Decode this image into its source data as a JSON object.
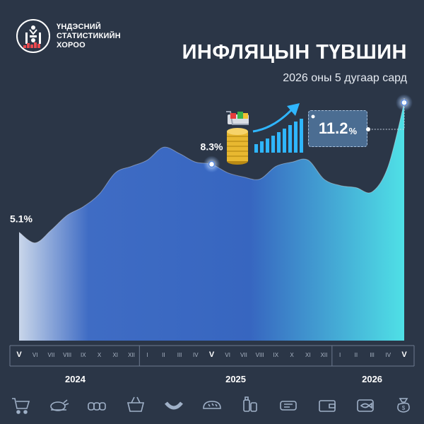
{
  "header": {
    "org_name": "ҮНДЭСНИЙ СТАТИСТИКИЙН ХОРОО",
    "title": "ИНФЛЯЦЫН ТҮВШИН",
    "subtitle": "2026 оны 5 дугаар сард"
  },
  "highlight": {
    "value": "11.2",
    "unit": "%"
  },
  "colors": {
    "background": "#2b3647",
    "area_start": "#c9d6ea",
    "area_mid": "#3766c0",
    "area_end": "#4fe0e6"
  },
  "icons": [
    "shopping-cart-icon",
    "roast-chicken-icon",
    "bread-loaves-icon",
    "grocery-basket-icon",
    "sausage-icon",
    "bread-loaf-icon",
    "household-goods-icon",
    "meat-icon",
    "wallet-icon",
    "canned-fish-icon",
    "money-bag-icon"
  ],
  "chart_data": {
    "type": "area",
    "title": "ИНФЛЯЦЫН ТҮВШИН",
    "subtitle": "2026 оны 5 дугаар сард",
    "unit": "%",
    "x": [
      "V",
      "VI",
      "VII",
      "VIII",
      "IX",
      "X",
      "XI",
      "XII",
      "I",
      "II",
      "III",
      "IV",
      "V",
      "VI",
      "VII",
      "VIII",
      "IX",
      "X",
      "XI",
      "XII",
      "I",
      "II",
      "III",
      "IV",
      "V"
    ],
    "year_groups": [
      {
        "label": "2024",
        "count": 8
      },
      {
        "label": "2025",
        "count": 12
      },
      {
        "label": "2026",
        "count": 5
      }
    ],
    "values": [
      5.1,
      4.6,
      5.2,
      5.9,
      6.3,
      6.9,
      7.9,
      8.2,
      8.5,
      9.1,
      8.8,
      8.4,
      8.3,
      7.9,
      7.7,
      7.6,
      8.2,
      8.4,
      8.5,
      7.6,
      7.3,
      7.2,
      7.0,
      8.2,
      11.2
    ],
    "labeled_points": [
      {
        "index": 0,
        "label": "5.1%"
      },
      {
        "index": 12,
        "label": "8.3%"
      },
      {
        "index": 24,
        "label": "11.2%"
      }
    ],
    "ylim": [
      0,
      12
    ],
    "grid": false
  }
}
